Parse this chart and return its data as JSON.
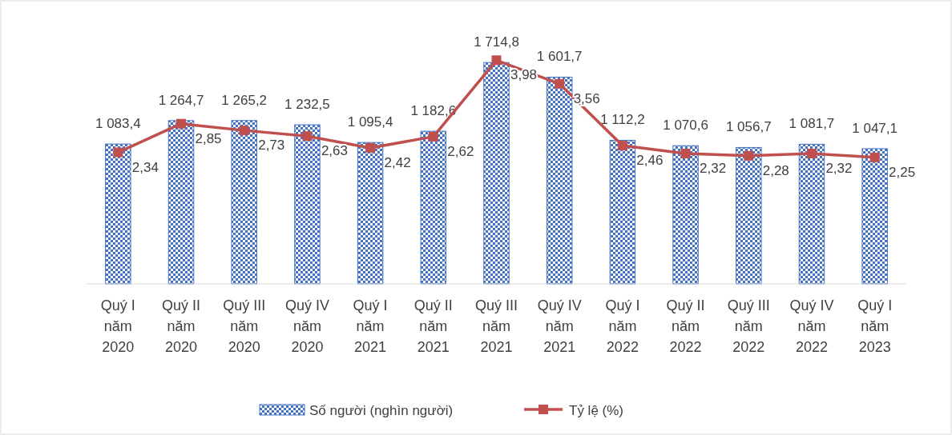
{
  "chart_data": {
    "type": "bar",
    "categories": [
      "Quý I năm 2020",
      "Quý II năm 2020",
      "Quý III năm 2020",
      "Quý IV năm 2020",
      "Quý I năm 2021",
      "Quý II năm 2021",
      "Quý III năm 2021",
      "Quý IV năm 2021",
      "Quý I năm 2022",
      "Quý II năm 2022",
      "Quý III năm 2022",
      "Quý IV năm 2022",
      "Quý I năm 2023"
    ],
    "series": [
      {
        "name": "Số người (nghìn người)",
        "color": "#4472c4",
        "values": [
          1083.4,
          1264.7,
          1265.2,
          1232.5,
          1095.4,
          1182.6,
          1714.8,
          1601.7,
          1112.2,
          1070.6,
          1056.7,
          1081.7,
          1047.1
        ],
        "value_labels": [
          "1 083,4",
          "1 264,7",
          "1 265,2",
          "1 232,5",
          "1 095,4",
          "1 182,6",
          "1 714,8",
          "1 601,7",
          "1 112,2",
          "1 070,6",
          "1 056,7",
          "1 081,7",
          "1 047,1"
        ]
      },
      {
        "name": "Tỷ lệ (%)",
        "type": "line",
        "axis": "y2",
        "color": "#c0504d",
        "marker": "square",
        "values": [
          2.34,
          2.85,
          2.73,
          2.63,
          2.42,
          2.62,
          3.98,
          3.56,
          2.46,
          2.32,
          2.28,
          2.32,
          2.25
        ],
        "value_labels": [
          "2,34",
          "2,85",
          "2,73",
          "2,63",
          "2,42",
          "2,62",
          "3,98",
          "3,56",
          "2,46",
          "2,32",
          "2,28",
          "2,32",
          "2,25"
        ]
      }
    ],
    "tick_labels": "x",
    "legend": "bottom"
  }
}
